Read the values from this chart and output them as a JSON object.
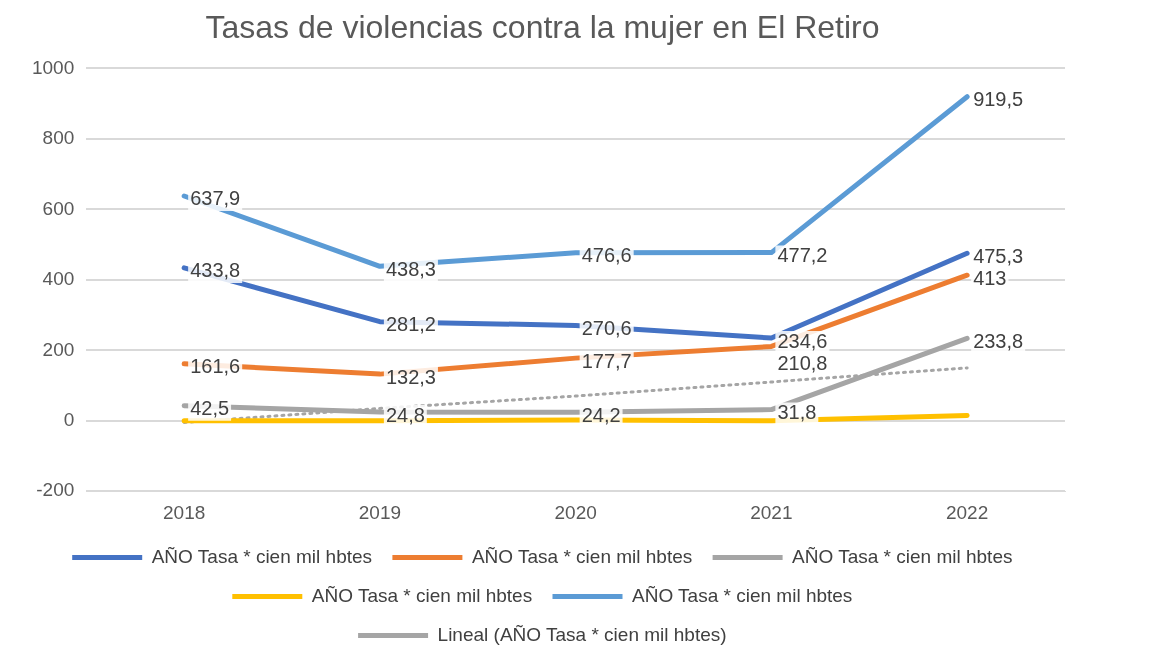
{
  "chart_data": {
    "type": "line",
    "title": "Tasas de violencias contra la mujer en El Retiro",
    "categories": [
      "2018",
      "2019",
      "2020",
      "2021",
      "2022"
    ],
    "series": [
      {
        "name": "AÑO Tasa * cien mil hbtes",
        "color": "#4472c4",
        "values": [
          433.8,
          281.2,
          270.6,
          234.6,
          475.3
        ],
        "value_labels": [
          "433,8",
          "281,2",
          "270,6",
          "234,6",
          "475,3"
        ]
      },
      {
        "name": "AÑO Tasa * cien mil hbtes",
        "color": "#ed7d31",
        "values": [
          161.6,
          132.3,
          177.7,
          210.8,
          413
        ],
        "value_labels": [
          "161,6",
          "132,3",
          "177,7",
          "210,8",
          "413"
        ]
      },
      {
        "name": "AÑO Tasa * cien mil hbtes",
        "color": "#a5a5a5",
        "values": [
          42.5,
          24.8,
          24.2,
          31.8,
          233.8
        ],
        "value_labels": [
          "42,5",
          "24,8",
          "24,2",
          "31,8",
          "233,8"
        ]
      },
      {
        "name": "AÑO Tasa * cien mil hbtes",
        "color": "#ffc000",
        "values": [
          0,
          0,
          2,
          0,
          15
        ]
      },
      {
        "name": "AÑO Tasa * cien mil hbtes",
        "color": "#5b9bd5",
        "values": [
          637.9,
          438.3,
          476.6,
          477.2,
          919.5
        ],
        "value_labels": [
          "637,9",
          "438,3",
          "476,6",
          "477,2",
          "919,5"
        ]
      },
      {
        "name": "Lineal (AÑO Tasa * cien mil hbtes)",
        "color": "#a5a5a5",
        "line_style": "dotted",
        "values": [
          -5,
          35,
          70,
          110,
          150
        ]
      }
    ],
    "ylim": [
      -200,
      1000
    ],
    "yticks": [
      -200,
      0,
      200,
      400,
      600,
      800,
      1000
    ],
    "grid": "y",
    "legend": "bottom",
    "marker": "none"
  }
}
